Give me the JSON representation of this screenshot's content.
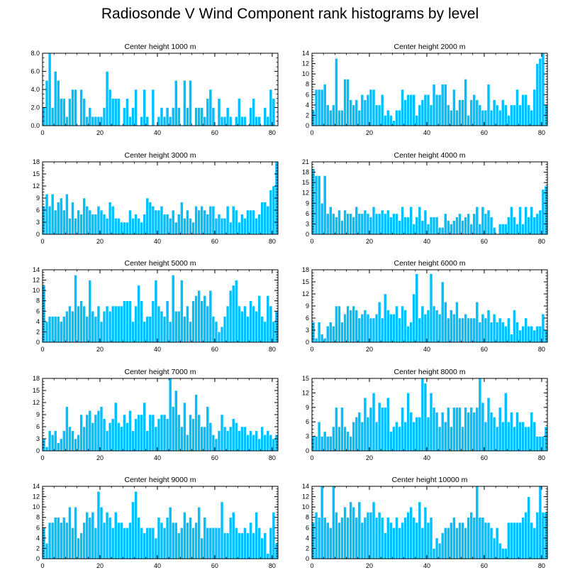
{
  "title": "Radiosonde V Wind Component rank histograms by level",
  "colors": {
    "bar": "#00bfff",
    "bar_stroke": "#ffffff",
    "axis": "#000000"
  },
  "chart_data": [
    {
      "type": "bar",
      "title": "Center height 1000 m",
      "ylim": [
        0,
        8
      ],
      "xlim": [
        0,
        82
      ],
      "yticks": [
        0,
        2,
        4,
        6,
        8
      ],
      "ytick_labels": [
        "0.0",
        "2.0",
        "4.0",
        "6.0",
        "8.0"
      ],
      "xticks": [
        0,
        20,
        40,
        60,
        80
      ],
      "xtick_labels": [
        "0",
        "20",
        "40",
        "60",
        "80"
      ],
      "values": [
        2,
        5,
        8,
        2,
        6,
        5,
        3,
        3,
        1,
        3,
        4,
        4,
        0,
        4,
        3,
        1,
        2,
        1,
        1,
        1,
        1,
        2,
        6,
        4,
        3,
        3,
        3,
        0,
        2,
        3,
        1,
        2,
        4,
        0,
        1,
        4,
        1,
        0,
        4,
        0,
        1,
        2,
        1,
        2,
        1,
        2,
        5,
        2,
        0,
        5,
        2,
        5,
        0,
        2,
        2,
        2,
        1,
        3,
        4,
        2,
        0,
        3,
        1,
        1,
        2,
        1,
        0,
        1,
        3,
        1,
        1,
        0,
        2,
        3,
        1,
        1,
        0,
        2,
        1,
        4,
        3,
        0
      ]
    },
    {
      "type": "bar",
      "title": "Center height 2000 m",
      "ylim": [
        0,
        14
      ],
      "xlim": [
        0,
        82
      ],
      "yticks": [
        0,
        2,
        4,
        6,
        8,
        10,
        12,
        14
      ],
      "ytick_labels": [
        "0",
        "2",
        "4",
        "6",
        "8",
        "10",
        "12",
        "14"
      ],
      "xticks": [
        0,
        20,
        40,
        60,
        80
      ],
      "xtick_labels": [
        "0",
        "20",
        "40",
        "60",
        "80"
      ],
      "values": [
        3,
        7,
        7,
        7,
        8,
        4,
        3,
        4,
        13,
        3,
        3,
        9,
        9,
        5,
        4,
        5,
        3,
        6,
        5,
        6,
        7,
        7,
        4,
        4,
        6,
        2,
        3,
        2,
        1,
        3,
        3,
        7,
        5,
        6,
        6,
        6,
        2,
        4,
        5,
        6,
        6,
        4,
        8,
        6,
        6,
        8,
        8,
        4,
        3,
        7,
        3,
        5,
        5,
        9,
        2,
        5,
        6,
        5,
        4,
        3,
        3,
        8,
        3,
        5,
        4,
        3,
        5,
        4,
        2,
        4,
        4,
        7,
        4,
        6,
        6,
        4,
        3,
        7,
        12,
        13,
        14,
        4
      ]
    },
    {
      "type": "bar",
      "title": "Center height 3000 m",
      "ylim": [
        0,
        18
      ],
      "xlim": [
        0,
        82
      ],
      "yticks": [
        0,
        3,
        6,
        9,
        12,
        15,
        18
      ],
      "ytick_labels": [
        "0",
        "3",
        "6",
        "9",
        "12",
        "15",
        "18"
      ],
      "xticks": [
        0,
        20,
        40,
        60,
        80
      ],
      "xtick_labels": [
        "0",
        "20",
        "40",
        "60",
        "80"
      ],
      "values": [
        7,
        10,
        7,
        10,
        6,
        8,
        9,
        6,
        10,
        4,
        8,
        4,
        6,
        5,
        9,
        7,
        6,
        5,
        5,
        7,
        6,
        5,
        4,
        8,
        7,
        4,
        4,
        3,
        3,
        3,
        6,
        4,
        5,
        4,
        3,
        5,
        9,
        8,
        7,
        6,
        6,
        7,
        5,
        5,
        4,
        6,
        3,
        5,
        8,
        4,
        6,
        4,
        3,
        7,
        6,
        7,
        6,
        5,
        7,
        7,
        4,
        5,
        4,
        4,
        7,
        3,
        7,
        6,
        3,
        5,
        4,
        6,
        6,
        6,
        4,
        5,
        8,
        8,
        7,
        11,
        12,
        18
      ]
    },
    {
      "type": "bar",
      "title": "Center height 4000 m",
      "ylim": [
        0,
        21
      ],
      "xlim": [
        0,
        82
      ],
      "yticks": [
        0,
        3,
        6,
        9,
        12,
        15,
        18,
        21
      ],
      "ytick_labels": [
        "0",
        "3",
        "6",
        "9",
        "12",
        "15",
        "18",
        "21"
      ],
      "xticks": [
        0,
        20,
        40,
        60,
        80
      ],
      "xtick_labels": [
        "0",
        "20",
        "40",
        "60",
        "80"
      ],
      "values": [
        19,
        17,
        17,
        9,
        17,
        6,
        8,
        6,
        5,
        7,
        4,
        7,
        6,
        6,
        5,
        8,
        6,
        6,
        7,
        6,
        5,
        8,
        6,
        6,
        7,
        6,
        7,
        5,
        6,
        6,
        4,
        8,
        5,
        5,
        8,
        3,
        5,
        8,
        4,
        7,
        3,
        5,
        5,
        5,
        2,
        2,
        6,
        4,
        3,
        4,
        5,
        6,
        4,
        5,
        6,
        3,
        6,
        8,
        3,
        8,
        6,
        7,
        5,
        2,
        0,
        3,
        3,
        3,
        5,
        8,
        5,
        3,
        8,
        3,
        8,
        5,
        8,
        5,
        6,
        7,
        13,
        14
      ]
    },
    {
      "type": "bar",
      "title": "Center height 5000 m",
      "ylim": [
        0,
        14
      ],
      "xlim": [
        0,
        82
      ],
      "yticks": [
        0,
        2,
        4,
        6,
        8,
        10,
        12,
        14
      ],
      "ytick_labels": [
        "0",
        "2",
        "4",
        "6",
        "8",
        "10",
        "12",
        "14"
      ],
      "xticks": [
        0,
        20,
        40,
        60,
        80
      ],
      "xtick_labels": [
        "0",
        "20",
        "40",
        "60",
        "80"
      ],
      "values": [
        11,
        4,
        5,
        5,
        5,
        5,
        4,
        5,
        6,
        7,
        6,
        13,
        7,
        8,
        7,
        5,
        12,
        6,
        5,
        7,
        4,
        6,
        7,
        6,
        7,
        7,
        7,
        7,
        8,
        8,
        8,
        4,
        7,
        11,
        8,
        4,
        5,
        5,
        8,
        12,
        7,
        6,
        5,
        8,
        4,
        13,
        6,
        6,
        12,
        5,
        7,
        4,
        8,
        9,
        10,
        8,
        9,
        7,
        10,
        5,
        4,
        2,
        3,
        5,
        7,
        10,
        11,
        12,
        7,
        6,
        7,
        5,
        8,
        7,
        6,
        9,
        5,
        4,
        9,
        7,
        4,
        6
      ]
    },
    {
      "type": "bar",
      "title": "Center height 6000 m",
      "ylim": [
        0,
        18
      ],
      "xlim": [
        0,
        82
      ],
      "yticks": [
        0,
        3,
        6,
        9,
        12,
        15,
        18
      ],
      "ytick_labels": [
        "0",
        "3",
        "6",
        "9",
        "12",
        "15",
        "18"
      ],
      "xticks": [
        0,
        20,
        40,
        60,
        80
      ],
      "xtick_labels": [
        "0",
        "20",
        "40",
        "60",
        "80"
      ],
      "values": [
        5,
        1,
        5,
        2,
        1,
        4,
        5,
        4,
        9,
        9,
        5,
        7,
        9,
        8,
        9,
        8,
        6,
        7,
        8,
        7,
        6,
        6,
        7,
        10,
        6,
        12,
        8,
        7,
        7,
        9,
        6,
        9,
        8,
        4,
        5,
        12,
        17,
        6,
        9,
        7,
        8,
        17,
        9,
        8,
        7,
        15,
        10,
        6,
        8,
        7,
        10,
        6,
        6,
        7,
        6,
        6,
        6,
        10,
        5,
        7,
        6,
        8,
        5,
        7,
        5,
        6,
        5,
        4,
        6,
        2,
        8,
        5,
        3,
        4,
        6,
        4,
        4,
        3,
        4,
        4,
        7,
        3
      ]
    },
    {
      "type": "bar",
      "title": "Center height 7000 m",
      "ylim": [
        0,
        18
      ],
      "xlim": [
        0,
        82
      ],
      "yticks": [
        0,
        3,
        6,
        9,
        12,
        15,
        18
      ],
      "ytick_labels": [
        "0",
        "3",
        "6",
        "9",
        "12",
        "15",
        "18"
      ],
      "xticks": [
        0,
        20,
        40,
        60,
        80
      ],
      "xtick_labels": [
        "0",
        "20",
        "40",
        "60",
        "80"
      ],
      "values": [
        3,
        1,
        5,
        4,
        5,
        2,
        3,
        5,
        11,
        6,
        5,
        3,
        4,
        9,
        6,
        9,
        10,
        7,
        9,
        10,
        11,
        8,
        5,
        7,
        8,
        12,
        7,
        6,
        9,
        7,
        10,
        5,
        8,
        9,
        9,
        12,
        5,
        9,
        9,
        6,
        8,
        9,
        9,
        8,
        18,
        11,
        15,
        9,
        6,
        12,
        4,
        9,
        8,
        14,
        9,
        6,
        6,
        11,
        7,
        4,
        3,
        5,
        9,
        6,
        5,
        6,
        8,
        7,
        5,
        6,
        6,
        4,
        5,
        4,
        5,
        3,
        6,
        4,
        5,
        4,
        3,
        4
      ]
    },
    {
      "type": "bar",
      "title": "Center height 8000 m",
      "ylim": [
        0,
        15
      ],
      "xlim": [
        0,
        82
      ],
      "yticks": [
        0,
        3,
        6,
        9,
        12,
        15
      ],
      "ytick_labels": [
        "0",
        "3",
        "6",
        "9",
        "12",
        "15"
      ],
      "xticks": [
        0,
        20,
        40,
        60,
        80
      ],
      "xtick_labels": [
        "0",
        "20",
        "40",
        "60",
        "80"
      ],
      "values": [
        3,
        3,
        6,
        3,
        4,
        3,
        3,
        5,
        9,
        5,
        9,
        5,
        4,
        3,
        6,
        7,
        8,
        6,
        11,
        7,
        9,
        12,
        6,
        10,
        9,
        9,
        11,
        4,
        5,
        6,
        5,
        9,
        6,
        12,
        8,
        6,
        7,
        7,
        15,
        14,
        7,
        12,
        9,
        8,
        5,
        8,
        6,
        9,
        5,
        9,
        9,
        9,
        5,
        9,
        8,
        9,
        8,
        9,
        15,
        10,
        6,
        11,
        8,
        7,
        5,
        9,
        6,
        12,
        6,
        8,
        5,
        8,
        6,
        6,
        5,
        5,
        8,
        6,
        3,
        3,
        3,
        5
      ]
    },
    {
      "type": "bar",
      "title": "Center height 9000 m",
      "ylim": [
        0,
        14
      ],
      "xlim": [
        0,
        82
      ],
      "yticks": [
        0,
        2,
        4,
        6,
        8,
        10,
        12,
        14
      ],
      "ytick_labels": [
        "0",
        "2",
        "4",
        "6",
        "8",
        "10",
        "12",
        "14"
      ],
      "xticks": [
        0,
        20,
        40,
        60,
        80
      ],
      "xtick_labels": [
        "0",
        "20",
        "40",
        "60",
        "80"
      ],
      "values": [
        6,
        3,
        7,
        7,
        8,
        8,
        7,
        8,
        7,
        10,
        6,
        10,
        4,
        5,
        7,
        9,
        8,
        9,
        6,
        13,
        10,
        7,
        9,
        8,
        6,
        9,
        7,
        7,
        6,
        6,
        7,
        11,
        13,
        8,
        6,
        5,
        6,
        6,
        6,
        4,
        8,
        7,
        6,
        8,
        10,
        7,
        7,
        5,
        6,
        9,
        7,
        8,
        6,
        7,
        10,
        4,
        8,
        6,
        6,
        6,
        6,
        6,
        11,
        5,
        5,
        8,
        9,
        6,
        5,
        5,
        6,
        5,
        7,
        5,
        9,
        6,
        4,
        5,
        1,
        6,
        9,
        3
      ]
    },
    {
      "type": "bar",
      "title": "Center height 10000 m",
      "ylim": [
        0,
        14
      ],
      "xlim": [
        0,
        82
      ],
      "yticks": [
        0,
        2,
        4,
        6,
        8,
        10,
        12,
        14
      ],
      "ytick_labels": [
        "0",
        "2",
        "4",
        "6",
        "8",
        "10",
        "12",
        "14"
      ],
      "xticks": [
        0,
        20,
        40,
        60,
        80
      ],
      "xtick_labels": [
        "0",
        "20",
        "40",
        "60",
        "80"
      ],
      "values": [
        7,
        9,
        8,
        14,
        8,
        7,
        6,
        14,
        9,
        7,
        8,
        10,
        8,
        11,
        10,
        8,
        11,
        7,
        8,
        9,
        9,
        11,
        8,
        9,
        8,
        5,
        8,
        7,
        6,
        8,
        6,
        7,
        8,
        9,
        10,
        8,
        7,
        11,
        6,
        10,
        7,
        8,
        2,
        4,
        3,
        5,
        6,
        6,
        7,
        8,
        6,
        7,
        7,
        6,
        8,
        9,
        8,
        14,
        8,
        8,
        7,
        7,
        6,
        4,
        6,
        3,
        2,
        2,
        7,
        7,
        7,
        7,
        7,
        8,
        9,
        12,
        7,
        6,
        9,
        14,
        9,
        9
      ]
    }
  ]
}
